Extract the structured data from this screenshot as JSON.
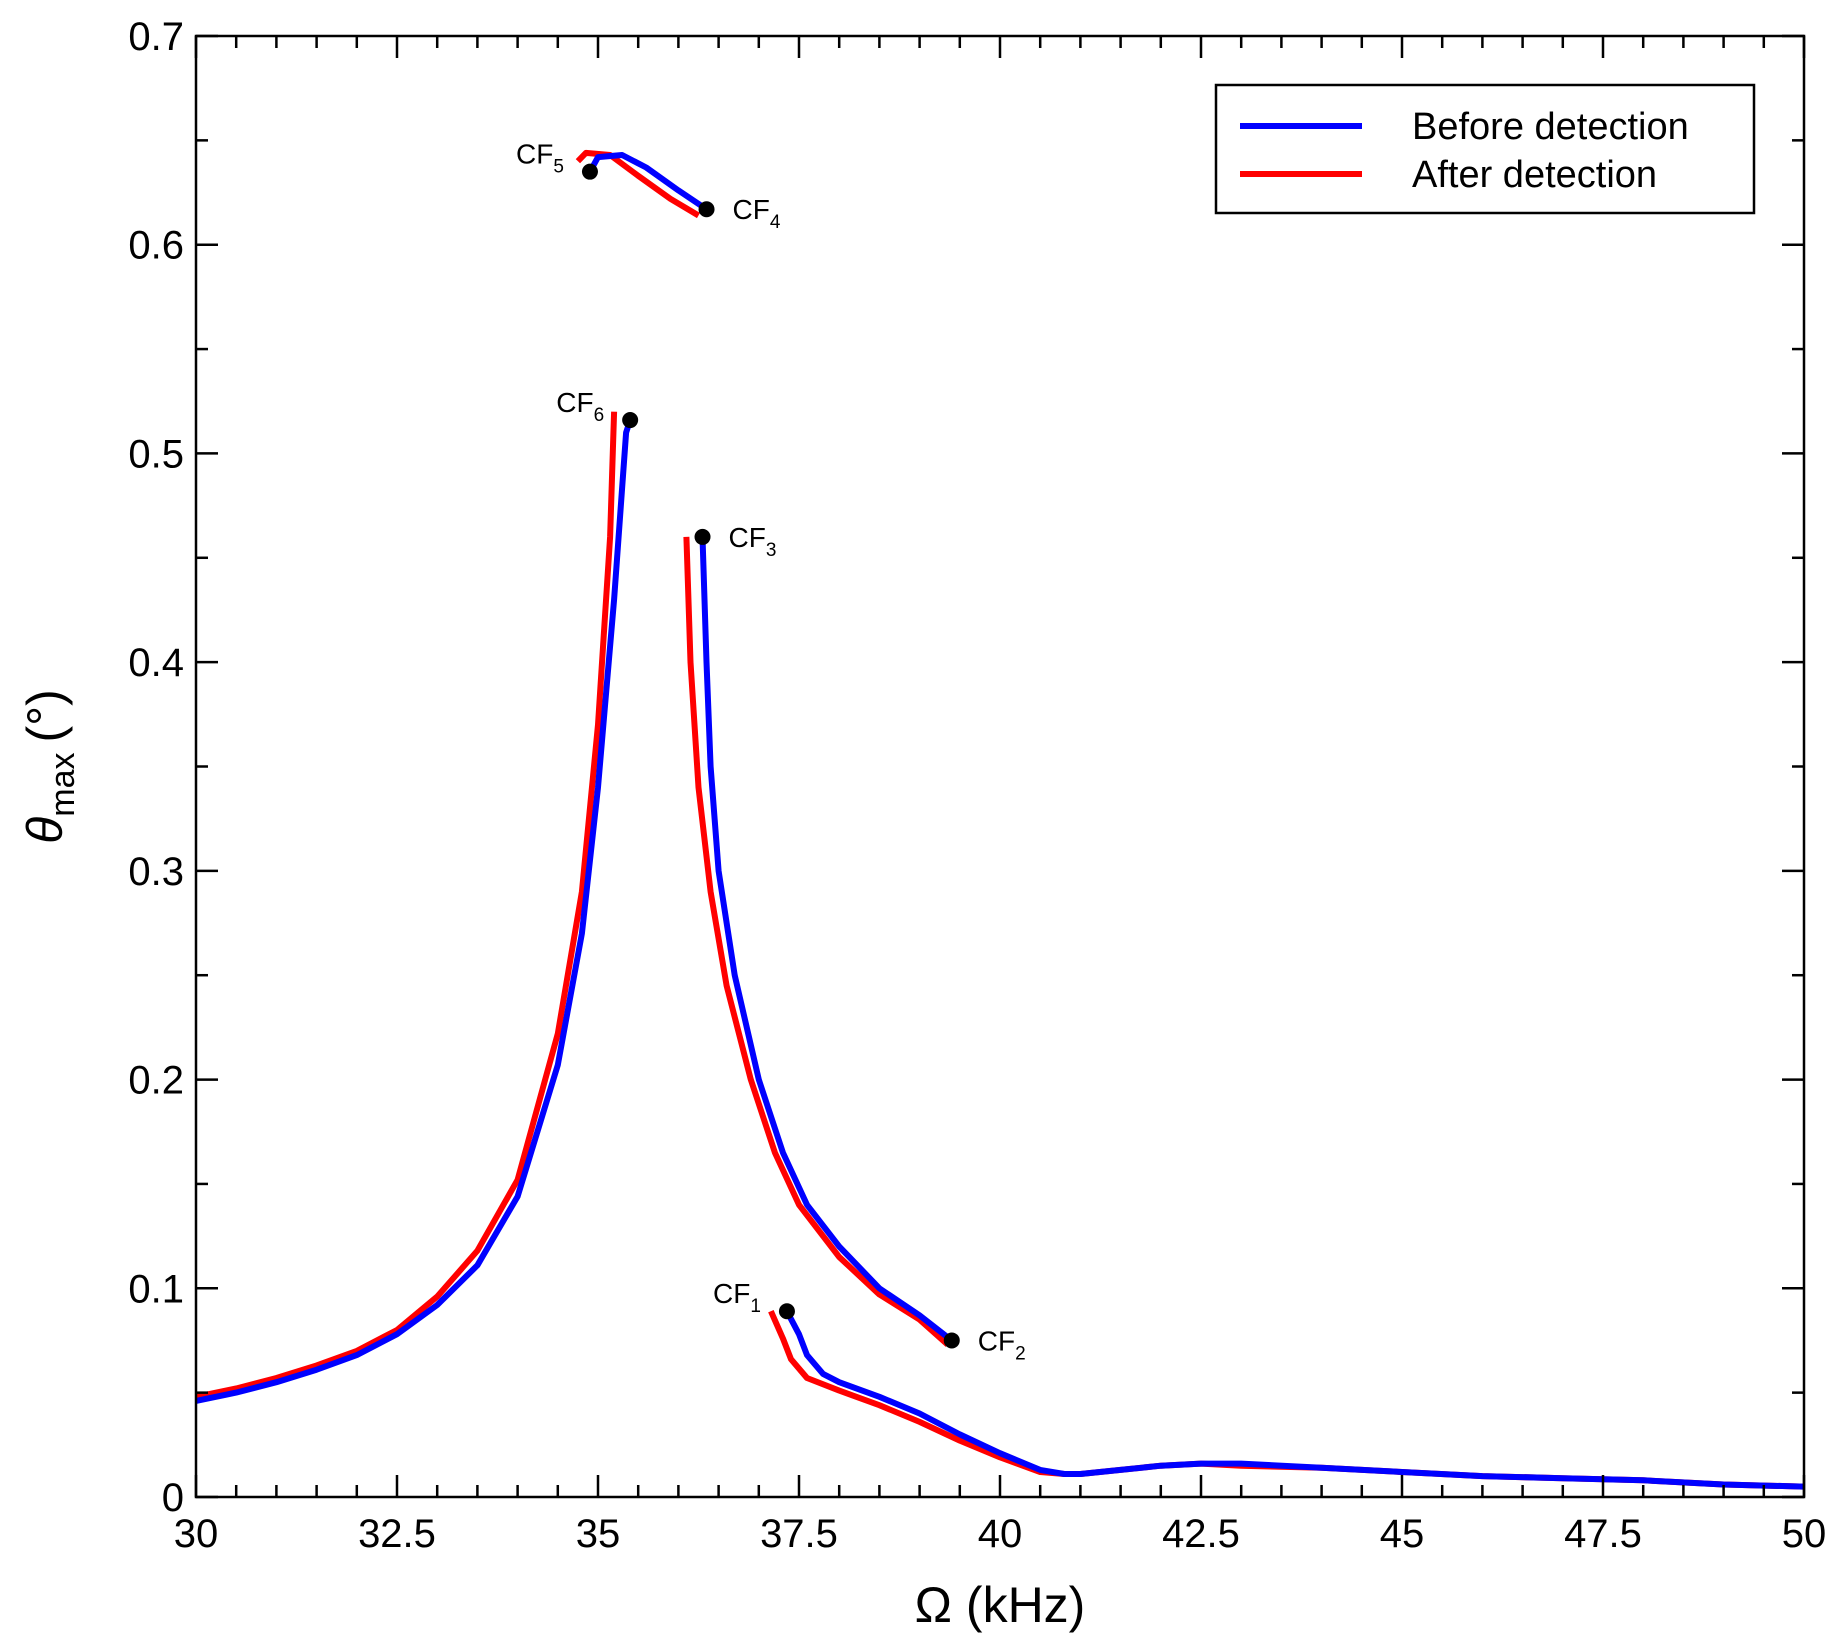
{
  "chart_data": {
    "type": "line",
    "title": "",
    "xlabel": "Ω (kHz)",
    "ylabel": {
      "symbol": "θ",
      "subscript": "max",
      "unit": "(°)"
    },
    "xlim": [
      30,
      50
    ],
    "ylim": [
      0,
      0.7
    ],
    "xticks": [
      30,
      32.5,
      35,
      37.5,
      40,
      42.5,
      45,
      47.5,
      50
    ],
    "xtick_labels": [
      "30",
      "32.5",
      "35",
      "37.5",
      "40",
      "42.5",
      "45",
      "47.5",
      "50"
    ],
    "yticks": [
      0,
      0.1,
      0.2,
      0.3,
      0.4,
      0.5,
      0.6,
      0.7
    ],
    "ytick_labels": [
      "0",
      "0.1",
      "0.2",
      "0.3",
      "0.4",
      "0.5",
      "0.6",
      "0.7"
    ],
    "grid": false,
    "legend_position": "top-right",
    "series": [
      {
        "name": "Before detection",
        "color": "#0000ff",
        "segments": [
          [
            [
              30,
              0.046
            ],
            [
              30.5,
              0.05
            ],
            [
              31,
              0.055
            ],
            [
              31.5,
              0.061
            ],
            [
              32,
              0.068
            ],
            [
              32.5,
              0.078
            ],
            [
              33,
              0.092
            ],
            [
              33.5,
              0.111
            ],
            [
              34,
              0.144
            ],
            [
              34.5,
              0.207
            ],
            [
              34.8,
              0.27
            ],
            [
              35,
              0.34
            ],
            [
              35.2,
              0.43
            ],
            [
              35.35,
              0.51
            ],
            [
              35.4,
              0.516
            ]
          ],
          [
            [
              36.3,
              0.46
            ],
            [
              36.35,
              0.4
            ],
            [
              36.4,
              0.35
            ],
            [
              36.5,
              0.3
            ],
            [
              36.7,
              0.25
            ],
            [
              37,
              0.2
            ],
            [
              37.3,
              0.165
            ],
            [
              37.6,
              0.14
            ],
            [
              38,
              0.12
            ],
            [
              38.5,
              0.1
            ],
            [
              39,
              0.087
            ],
            [
              39.4,
              0.075
            ]
          ],
          [
            [
              37.35,
              0.089
            ],
            [
              37.5,
              0.078
            ],
            [
              37.6,
              0.068
            ],
            [
              37.8,
              0.059
            ],
            [
              38,
              0.055
            ],
            [
              38.5,
              0.048
            ],
            [
              39,
              0.04
            ],
            [
              39.5,
              0.03
            ],
            [
              40,
              0.021
            ],
            [
              40.5,
              0.013
            ],
            [
              40.8,
              0.011
            ],
            [
              41,
              0.011
            ],
            [
              41.5,
              0.013
            ],
            [
              42,
              0.015
            ],
            [
              42.5,
              0.016
            ],
            [
              43,
              0.016
            ],
            [
              44,
              0.014
            ],
            [
              45,
              0.012
            ],
            [
              46,
              0.01
            ],
            [
              47,
              0.009
            ],
            [
              48,
              0.008
            ],
            [
              49,
              0.006
            ],
            [
              50,
              0.005
            ]
          ],
          [
            [
              34.9,
              0.635
            ],
            [
              35,
              0.642
            ],
            [
              35.3,
              0.643
            ],
            [
              35.6,
              0.637
            ],
            [
              36,
              0.626
            ],
            [
              36.35,
              0.617
            ]
          ]
        ]
      },
      {
        "name": "After detection",
        "color": "#ff0000",
        "segments": [
          [
            [
              30,
              0.048
            ],
            [
              30.5,
              0.052
            ],
            [
              31,
              0.057
            ],
            [
              31.5,
              0.063
            ],
            [
              32,
              0.07
            ],
            [
              32.5,
              0.08
            ],
            [
              33,
              0.096
            ],
            [
              33.5,
              0.118
            ],
            [
              34,
              0.152
            ],
            [
              34.5,
              0.222
            ],
            [
              34.8,
              0.29
            ],
            [
              35,
              0.37
            ],
            [
              35.15,
              0.46
            ],
            [
              35.2,
              0.52
            ]
          ],
          [
            [
              36.1,
              0.46
            ],
            [
              36.15,
              0.4
            ],
            [
              36.25,
              0.34
            ],
            [
              36.4,
              0.29
            ],
            [
              36.6,
              0.245
            ],
            [
              36.9,
              0.2
            ],
            [
              37.2,
              0.165
            ],
            [
              37.5,
              0.14
            ],
            [
              38,
              0.115
            ],
            [
              38.5,
              0.097
            ],
            [
              39,
              0.085
            ],
            [
              39.35,
              0.073
            ]
          ],
          [
            [
              37.15,
              0.089
            ],
            [
              37.3,
              0.076
            ],
            [
              37.4,
              0.066
            ],
            [
              37.6,
              0.057
            ],
            [
              38,
              0.051
            ],
            [
              38.5,
              0.044
            ],
            [
              39,
              0.036
            ],
            [
              39.5,
              0.027
            ],
            [
              40,
              0.019
            ],
            [
              40.5,
              0.012
            ],
            [
              40.8,
              0.011
            ],
            [
              41,
              0.011
            ],
            [
              41.5,
              0.013
            ],
            [
              42,
              0.015
            ],
            [
              42.5,
              0.016
            ],
            [
              43,
              0.015
            ],
            [
              44,
              0.014
            ],
            [
              45,
              0.012
            ],
            [
              46,
              0.01
            ],
            [
              47,
              0.009
            ],
            [
              48,
              0.008
            ],
            [
              49,
              0.006
            ],
            [
              50,
              0.005
            ]
          ],
          [
            [
              34.75,
              0.64
            ],
            [
              34.85,
              0.644
            ],
            [
              35.15,
              0.643
            ],
            [
              35.5,
              0.633
            ],
            [
              35.9,
              0.622
            ],
            [
              36.25,
              0.614
            ]
          ]
        ]
      }
    ],
    "points": [
      {
        "label": "CF",
        "sub": "1",
        "x": 37.35,
        "y": 0.089,
        "label_side": "left"
      },
      {
        "label": "CF",
        "sub": "2",
        "x": 39.4,
        "y": 0.075,
        "label_side": "right"
      },
      {
        "label": "CF",
        "sub": "3",
        "x": 36.3,
        "y": 0.46,
        "label_side": "right"
      },
      {
        "label": "CF",
        "sub": "4",
        "x": 36.35,
        "y": 0.617,
        "label_side": "right"
      },
      {
        "label": "CF",
        "sub": "5",
        "x": 34.9,
        "y": 0.635,
        "label_side": "left"
      },
      {
        "label": "CF",
        "sub": "6",
        "x": 35.4,
        "y": 0.516,
        "label_side": "left"
      }
    ]
  }
}
